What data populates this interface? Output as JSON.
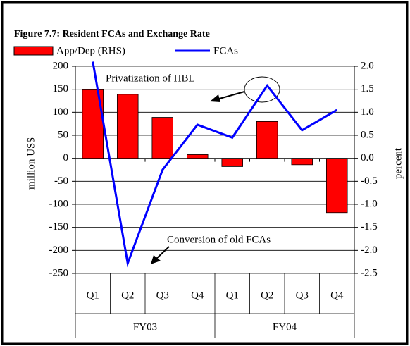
{
  "chart_data": {
    "type": "bar_line",
    "title": "Figure 7.7: Resident FCAs and Exchange Rate",
    "categories": [
      "Q1",
      "Q2",
      "Q3",
      "Q4",
      "Q1",
      "Q2",
      "Q3",
      "Q4"
    ],
    "groups": [
      "FY03",
      "FY04"
    ],
    "series": [
      {
        "name": "App/Dep (RHS)",
        "color": "#ff0000",
        "axis": "y2",
        "kind": "bar",
        "values": [
          1.49,
          1.39,
          0.89,
          0.08,
          -0.18,
          0.8,
          -0.14,
          -1.18
        ]
      },
      {
        "name": "FCAs",
        "color": "#0000ff",
        "kind": "line",
        "values": [
          210,
          -228,
          -25,
          73,
          45,
          158,
          61,
          105
        ]
      }
    ],
    "ylabel": "million US$",
    "y2label": "percent",
    "ylim": [
      -250,
      200
    ],
    "yticks": [
      -250,
      -200,
      -150,
      -100,
      -50,
      0,
      50,
      100,
      150,
      200
    ],
    "y2lim": [
      -2.5,
      2.0
    ],
    "y2ticks": [
      -2.5,
      {
        "value": -2,
        "label": "-2.0"
      },
      -1.5,
      {
        "value": -1,
        "label": "-1.0"
      },
      -0.5,
      {
        "value": 0,
        "label": "0.0"
      },
      0.5,
      {
        "value": 1,
        "label": "1.0"
      },
      1.5,
      {
        "value": 2,
        "label": "2.0"
      }
    ],
    "grid": true,
    "annotations": [
      "Privatization of HBL",
      "Conversion of old FCAs"
    ]
  }
}
